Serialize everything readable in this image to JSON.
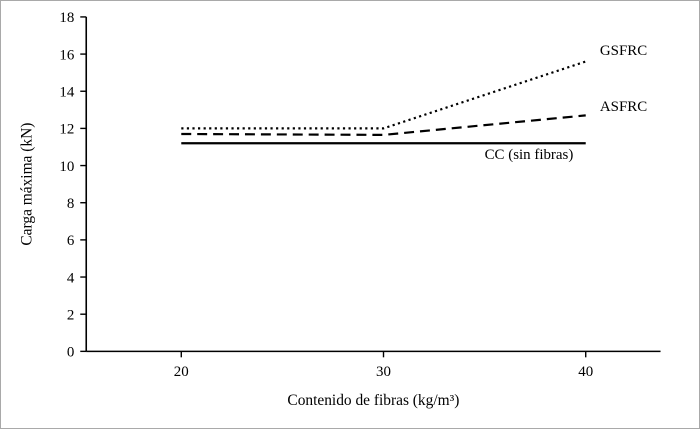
{
  "figure": {
    "background": "#ffffff",
    "border_color": "#a9a9a9",
    "axis_color": "#000000",
    "line_color": "#000000"
  },
  "chart_data": {
    "type": "line",
    "title": "",
    "xlabel": "Contenido de fibras (kg/m³)",
    "ylabel": "Carga máxima (kN)",
    "x": [
      20,
      30,
      40
    ],
    "xticks": [
      20,
      30,
      40
    ],
    "yticks": [
      0,
      2,
      4,
      6,
      8,
      10,
      12,
      14,
      16,
      18
    ],
    "xlim": [
      15.3,
      43.7
    ],
    "ylim": [
      0,
      18
    ],
    "grid": false,
    "legend_position": "inline-labels",
    "series": [
      {
        "name": "GSFRC",
        "values": [
          12.0,
          12.0,
          15.6
        ],
        "style": "dotted",
        "color": "#000000"
      },
      {
        "name": "ASFRC",
        "values": [
          11.7,
          11.65,
          12.7
        ],
        "style": "dashed",
        "color": "#000000"
      },
      {
        "name": "CC (sin fibras)",
        "values": [
          11.2,
          11.2,
          11.2
        ],
        "style": "solid",
        "color": "#000000"
      }
    ],
    "annotations": [
      {
        "text": "GSFRC",
        "x": 40.7,
        "y": 15.95
      },
      {
        "text": "ASFRC",
        "x": 40.7,
        "y": 12.95
      },
      {
        "text": "CC (sin fibras)",
        "x": 35.0,
        "y": 10.35
      }
    ]
  }
}
